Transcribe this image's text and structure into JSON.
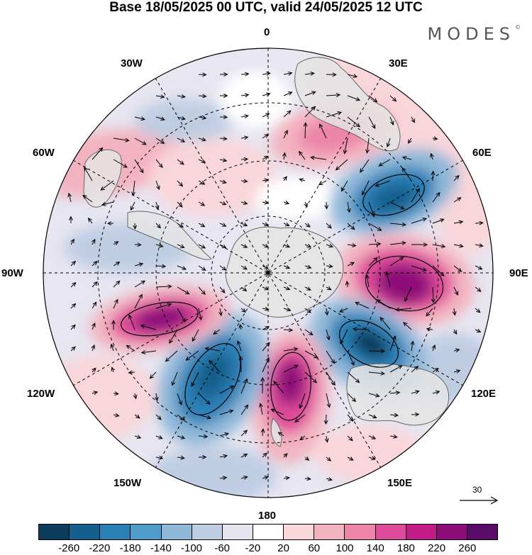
{
  "title": "Base 18/05/2025 00 UTC, valid 24/05/2025 12 UTC",
  "brand": "MODES",
  "brand_mark": "©",
  "longitude_labels": {
    "l0": "0",
    "l30e": "30E",
    "l60e": "60E",
    "l90e": "90E",
    "l120e": "120E",
    "l150e": "150E",
    "l180": "180",
    "l150w": "150W",
    "l120w": "120W",
    "l90w": "90W",
    "l60w": "60W",
    "l30w": "30W"
  },
  "reference_vector_label": "30",
  "colorbar": {
    "tick_labels": [
      "-260",
      "-220",
      "-180",
      "-140",
      "-100",
      "-60",
      "-20",
      "20",
      "60",
      "100",
      "140",
      "180",
      "220",
      "260"
    ],
    "colors": [
      "#0b3d5c",
      "#155f8c",
      "#2a7fb5",
      "#4f9ccb",
      "#8fb7d8",
      "#bfcde3",
      "#e5e4ef",
      "#ffffff",
      "#f9d6da",
      "#f3b2bf",
      "#ec85a8",
      "#dd4b9a",
      "#c01b86",
      "#8e0d79",
      "#5a0a69"
    ]
  },
  "map": {
    "projection": "south-polar-stereographic",
    "field_colors": {
      "positive_strong": "#8e0d79",
      "positive": "#dd4b9a",
      "positive_weak": "#f3b2bf",
      "negative_strong": "#155f8c",
      "negative": "#4f9ccb",
      "negative_weak": "#bfcde3",
      "land": "#e4e4e4"
    }
  }
}
